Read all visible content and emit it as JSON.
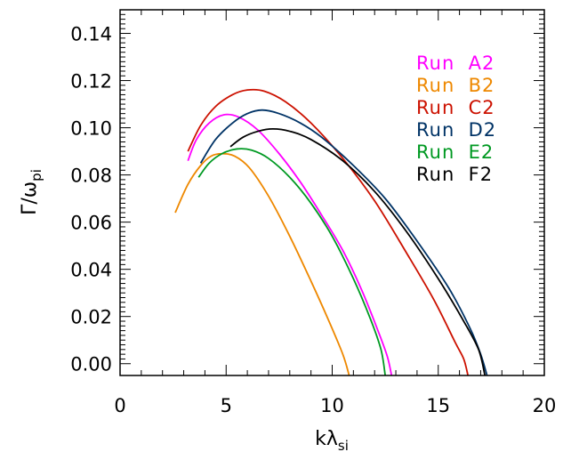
{
  "chart_data": {
    "type": "line",
    "xlabel_main": "kλ",
    "xlabel_sub": "si",
    "ylabel_main": "Γ/ω",
    "ylabel_sub": "pi",
    "xlim": [
      0,
      20
    ],
    "ylim": [
      -0.005,
      0.15
    ],
    "x_ticks": [
      0,
      5,
      10,
      15,
      20
    ],
    "x_tick_labels": [
      "0",
      "5",
      "10",
      "15",
      "20"
    ],
    "y_ticks": [
      0.0,
      0.02,
      0.04,
      0.06,
      0.08,
      0.1,
      0.12,
      0.14
    ],
    "y_tick_labels": [
      "0.00",
      "0.02",
      "0.04",
      "0.06",
      "0.08",
      "0.10",
      "0.12",
      "0.14"
    ],
    "grid": false,
    "legend_position": "top-right",
    "series": [
      {
        "name": "Run  A2",
        "color": "#ff00ff",
        "points": [
          [
            3.2,
            0.086
          ],
          [
            3.6,
            0.095
          ],
          [
            4.2,
            0.102
          ],
          [
            4.9,
            0.1055
          ],
          [
            5.6,
            0.1045
          ],
          [
            6.5,
            0.099
          ],
          [
            7.5,
            0.089
          ],
          [
            8.5,
            0.077
          ],
          [
            9.5,
            0.063
          ],
          [
            10.5,
            0.048
          ],
          [
            11.4,
            0.031
          ],
          [
            12.2,
            0.013
          ],
          [
            12.6,
            0.003
          ],
          [
            12.8,
            -0.005
          ]
        ]
      },
      {
        "name": "Run  B2",
        "color": "#ee8800",
        "points": [
          [
            2.6,
            0.064
          ],
          [
            3.2,
            0.076
          ],
          [
            3.8,
            0.084
          ],
          [
            4.3,
            0.088
          ],
          [
            4.8,
            0.089
          ],
          [
            5.4,
            0.088
          ],
          [
            6.1,
            0.083
          ],
          [
            7.0,
            0.071
          ],
          [
            8.0,
            0.054
          ],
          [
            9.0,
            0.035
          ],
          [
            9.8,
            0.019
          ],
          [
            10.5,
            0.004
          ],
          [
            10.8,
            -0.005
          ]
        ]
      },
      {
        "name": "Run  C2",
        "color": "#cc1100",
        "points": [
          [
            3.2,
            0.09
          ],
          [
            3.8,
            0.101
          ],
          [
            4.5,
            0.109
          ],
          [
            5.3,
            0.114
          ],
          [
            6.0,
            0.116
          ],
          [
            6.8,
            0.1155
          ],
          [
            7.8,
            0.111
          ],
          [
            9.0,
            0.102
          ],
          [
            10.5,
            0.087
          ],
          [
            12.0,
            0.069
          ],
          [
            13.5,
            0.047
          ],
          [
            14.8,
            0.027
          ],
          [
            15.8,
            0.009
          ],
          [
            16.2,
            0.002
          ],
          [
            16.4,
            -0.005
          ]
        ]
      },
      {
        "name": "Run  D2",
        "color": "#003366",
        "points": [
          [
            3.8,
            0.085
          ],
          [
            4.5,
            0.095
          ],
          [
            5.3,
            0.102
          ],
          [
            6.0,
            0.106
          ],
          [
            6.7,
            0.1075
          ],
          [
            7.5,
            0.106
          ],
          [
            8.5,
            0.102
          ],
          [
            9.5,
            0.096
          ],
          [
            11.0,
            0.084
          ],
          [
            12.5,
            0.07
          ],
          [
            14.0,
            0.052
          ],
          [
            15.5,
            0.032
          ],
          [
            16.5,
            0.015
          ],
          [
            17.0,
            0.004
          ],
          [
            17.3,
            -0.005
          ]
        ]
      },
      {
        "name": "Run  E2",
        "color": "#009922",
        "points": [
          [
            3.7,
            0.079
          ],
          [
            4.2,
            0.085
          ],
          [
            4.8,
            0.089
          ],
          [
            5.5,
            0.091
          ],
          [
            6.2,
            0.0905
          ],
          [
            7.0,
            0.087
          ],
          [
            8.0,
            0.079
          ],
          [
            9.0,
            0.068
          ],
          [
            10.0,
            0.054
          ],
          [
            11.0,
            0.036
          ],
          [
            11.8,
            0.019
          ],
          [
            12.3,
            0.006
          ],
          [
            12.5,
            -0.005
          ]
        ]
      },
      {
        "name": "Run  F2",
        "color": "#000000",
        "points": [
          [
            5.2,
            0.092
          ],
          [
            5.8,
            0.096
          ],
          [
            6.5,
            0.0985
          ],
          [
            7.2,
            0.0995
          ],
          [
            8.0,
            0.0985
          ],
          [
            9.0,
            0.095
          ],
          [
            10.5,
            0.086
          ],
          [
            12.0,
            0.073
          ],
          [
            13.5,
            0.056
          ],
          [
            15.0,
            0.036
          ],
          [
            16.2,
            0.018
          ],
          [
            16.9,
            0.006
          ],
          [
            17.2,
            -0.005
          ]
        ]
      }
    ]
  }
}
